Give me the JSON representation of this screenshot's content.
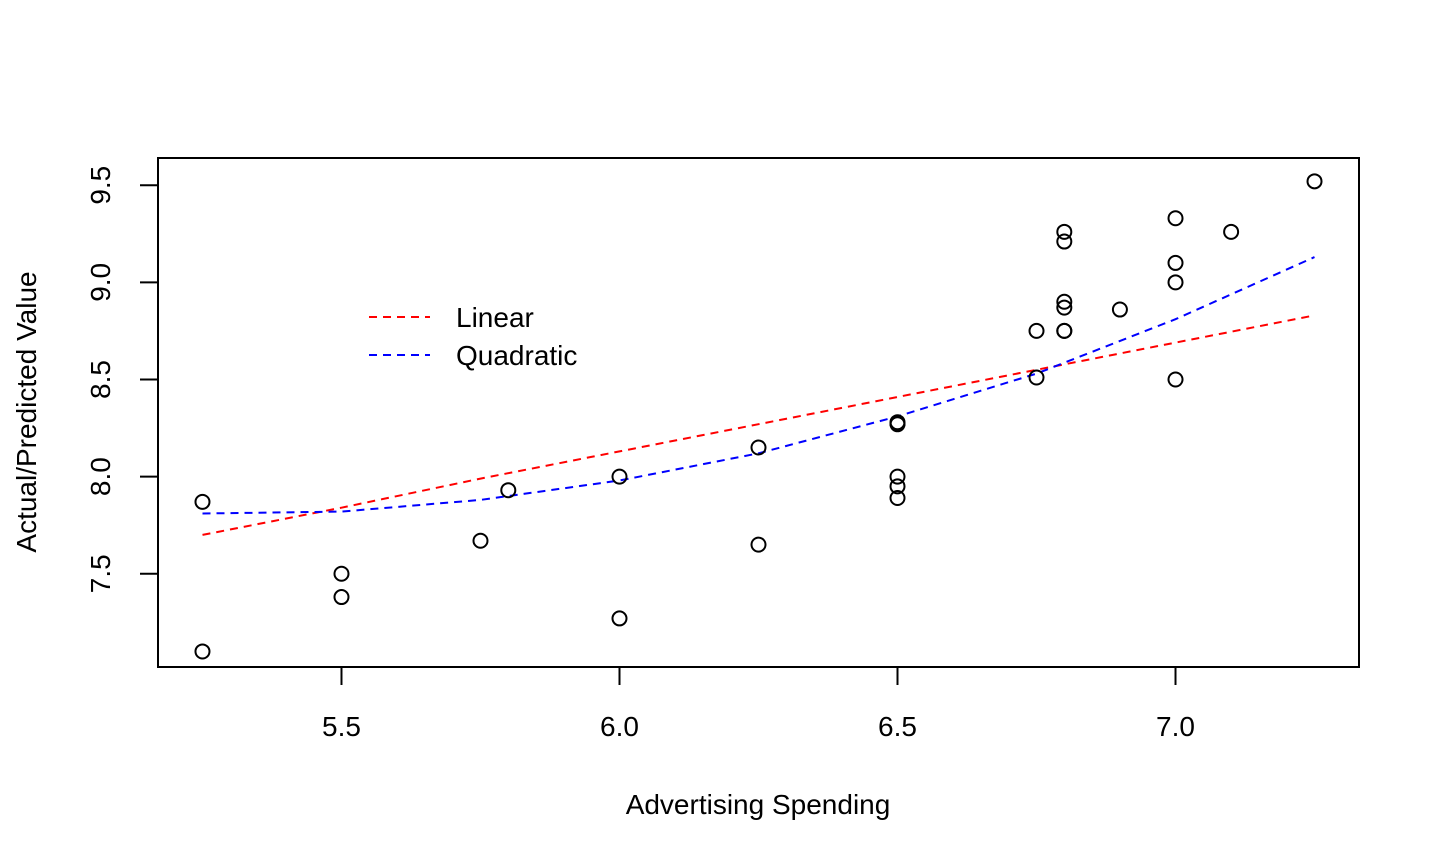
{
  "chart_data": {
    "type": "scatter",
    "xlabel": "Advertising Spending",
    "ylabel": "Actual/Predicted Value",
    "xlim": [
      5.17,
      7.33
    ],
    "ylim": [
      7.02,
      9.64
    ],
    "grid": false,
    "legend_position": "upper-left",
    "x_ticks": [
      5.5,
      6.0,
      6.5,
      7.0
    ],
    "x_tick_labels": [
      "5.5",
      "6.0",
      "6.5",
      "7.0"
    ],
    "y_ticks": [
      7.5,
      8.0,
      8.5,
      9.0,
      9.5
    ],
    "y_tick_labels": [
      "7.5",
      "8.0",
      "8.5",
      "9.0",
      "9.5"
    ],
    "points": {
      "x": [
        5.25,
        5.25,
        5.5,
        5.5,
        5.75,
        5.8,
        6.0,
        6.0,
        6.25,
        6.25,
        6.5,
        6.5,
        6.5,
        6.5,
        6.5,
        6.5,
        6.75,
        6.75,
        6.8,
        6.8,
        6.8,
        6.8,
        6.8,
        6.8,
        6.9,
        7.0,
        7.0,
        7.0,
        7.0,
        7.1,
        7.25
      ],
      "y": [
        7.87,
        7.1,
        7.5,
        7.38,
        7.67,
        7.93,
        8.0,
        7.27,
        8.15,
        7.65,
        8.28,
        8.27,
        8.0,
        7.95,
        7.89,
        8.27,
        8.75,
        8.51,
        9.26,
        9.21,
        8.9,
        8.87,
        8.75,
        8.75,
        8.86,
        9.33,
        9.1,
        9.0,
        8.5,
        9.26,
        9.52
      ],
      "marker": "open-circle",
      "color": "#000000"
    },
    "series": [
      {
        "name": "Linear",
        "color": "#ff0000",
        "style": "dashed",
        "x": [
          5.25,
          5.5,
          5.75,
          6.0,
          6.25,
          6.5,
          6.75,
          7.0,
          7.25
        ],
        "y": [
          7.7,
          7.84,
          7.99,
          8.13,
          8.27,
          8.41,
          8.55,
          8.69,
          8.83
        ]
      },
      {
        "name": "Quadratic",
        "color": "#0000ff",
        "style": "dashed",
        "x": [
          5.25,
          5.5,
          5.75,
          6.0,
          6.25,
          6.5,
          6.75,
          7.0,
          7.25
        ],
        "y": [
          7.81,
          7.82,
          7.88,
          7.98,
          8.12,
          8.31,
          8.53,
          8.81,
          9.13
        ]
      }
    ]
  }
}
